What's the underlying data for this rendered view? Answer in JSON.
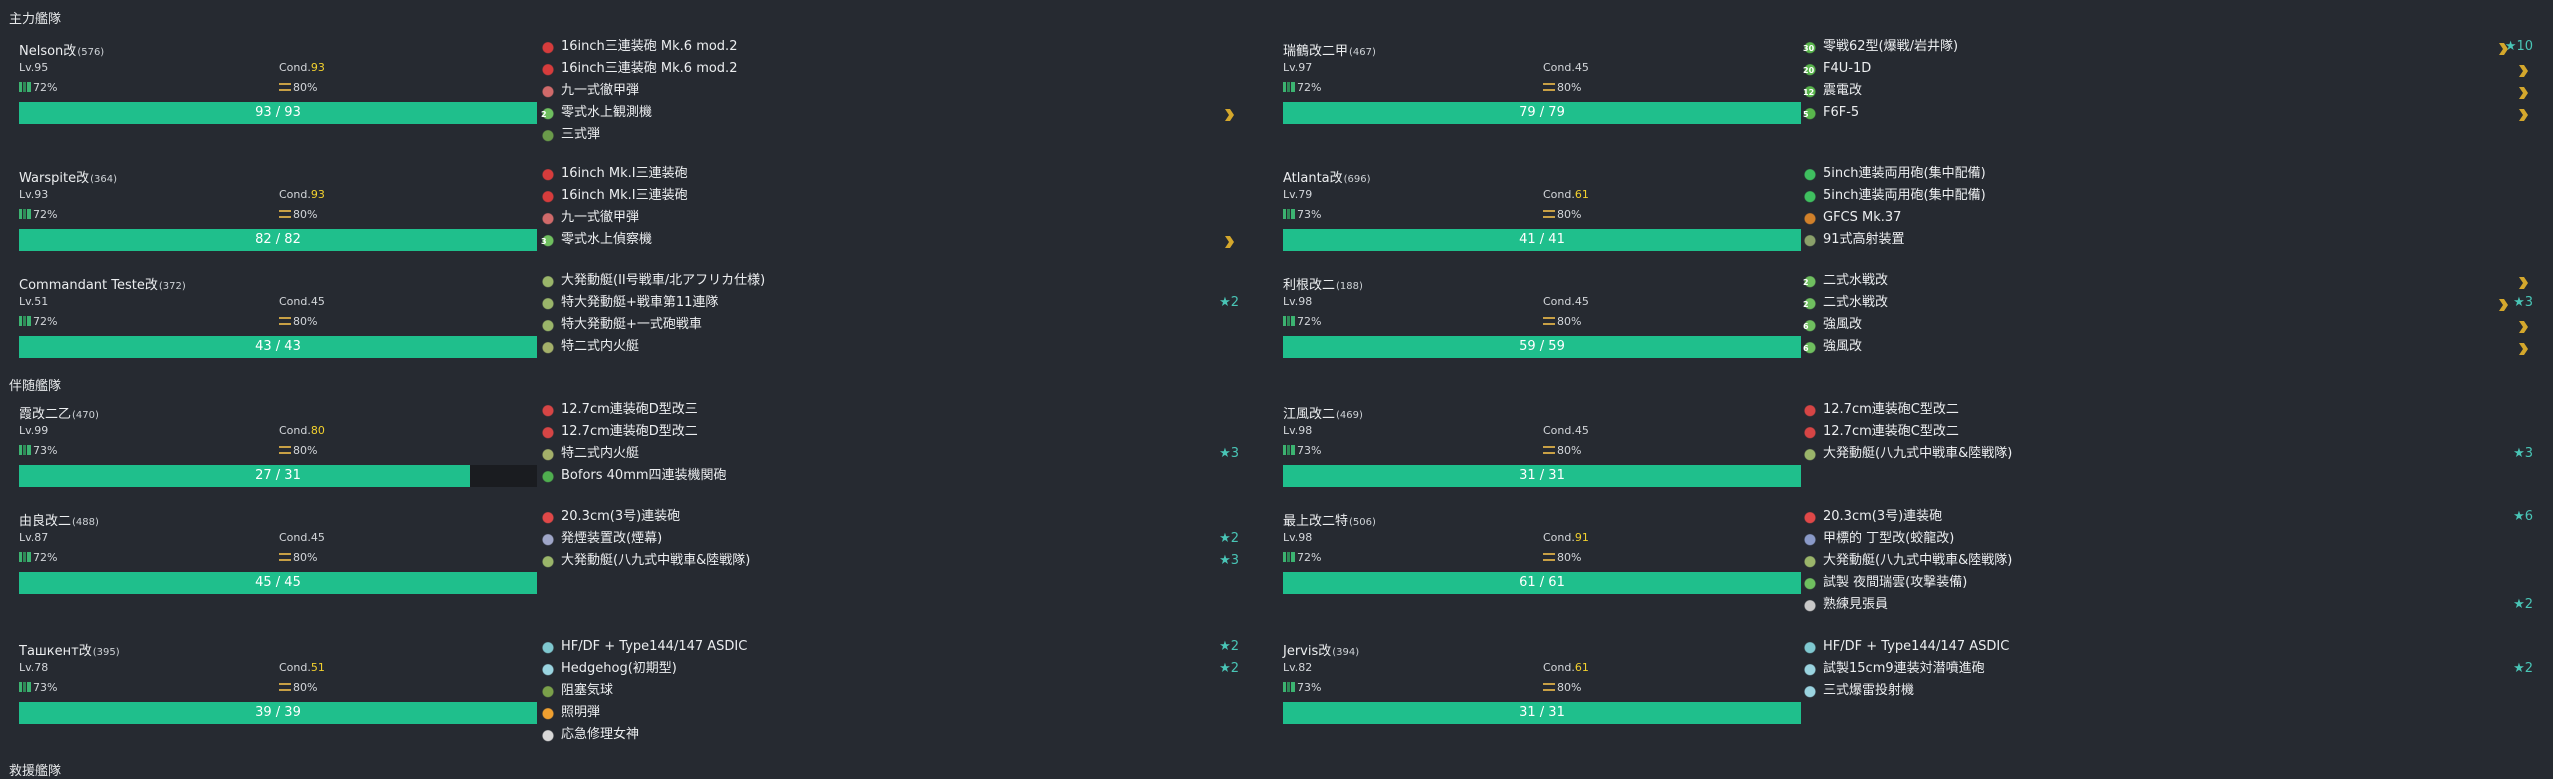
{
  "sections": {
    "main_fleet": "主力艦隊",
    "escort_fleet": "伴随艦隊",
    "third_fleet": "救援艦隊"
  },
  "colors": {
    "background": "#262a31",
    "hp_bar": "#1fbf8c",
    "cond_high": "#f3d12e",
    "improvement": "#49c5b6",
    "proficiency": "#d4a72c"
  },
  "ships": [
    {
      "name": "Nelson改",
      "id": "(576)",
      "level": "Lv.95",
      "cond_label": "Cond.",
      "cond": "93",
      "fuel": "72%",
      "ammo": "80%",
      "hp": "93 / 93",
      "hp_ratio": 1.0,
      "equip": [
        {
          "name": "16inch三連装砲 Mk.6 mod.2",
          "icon": "large-gun-icon"
        },
        {
          "name": "16inch三連装砲 Mk.6 mod.2",
          "icon": "large-gun-icon"
        },
        {
          "name": "九一式徹甲弾",
          "icon": "ap-shell-icon"
        },
        {
          "name": "零式水上観測機",
          "icon": "seaplane-icon",
          "slot": "2",
          "proficiency": true
        },
        {
          "name": "三式弾",
          "icon": "type3-shell-icon"
        }
      ]
    },
    {
      "name": "Warspite改",
      "id": "(364)",
      "level": "Lv.93",
      "cond_label": "Cond.",
      "cond": "93",
      "fuel": "72%",
      "ammo": "80%",
      "hp": "82 / 82",
      "hp_ratio": 1.0,
      "equip": [
        {
          "name": "16inch Mk.I三連装砲",
          "icon": "large-gun-icon"
        },
        {
          "name": "16inch Mk.I三連装砲",
          "icon": "large-gun-icon"
        },
        {
          "name": "九一式徹甲弾",
          "icon": "ap-shell-icon"
        },
        {
          "name": "零式水上偵察機",
          "icon": "seaplane-icon",
          "slot": "3",
          "proficiency": true
        }
      ]
    },
    {
      "name": "Commandant Teste改",
      "id": "(372)",
      "level": "Lv.51",
      "cond_label": "Cond.",
      "cond": "45",
      "fuel": "72%",
      "ammo": "80%",
      "hp": "43 / 43",
      "hp_ratio": 1.0,
      "equip": [
        {
          "name": "大発動艇(II号戦車/北アフリカ仕様)",
          "icon": "landing-craft-icon"
        },
        {
          "name": "特大発動艇+戦車第11連隊",
          "icon": "landing-craft-icon",
          "star": "★2"
        },
        {
          "name": "特大発動艇+一式砲戦車",
          "icon": "landing-craft-icon"
        },
        {
          "name": "特二式内火艇",
          "icon": "amphibious-tank-icon"
        }
      ]
    },
    {
      "name": "瑞鶴改二甲",
      "id": "(467)",
      "level": "Lv.97",
      "cond_label": "Cond.",
      "cond": "45",
      "fuel": "72%",
      "ammo": "80%",
      "hp": "79 / 79",
      "hp_ratio": 1.0,
      "equip": [
        {
          "name": "零戦62型(爆戦/岩井隊)",
          "icon": "fighter-bomber-icon",
          "slot": "30",
          "proficiency": true,
          "star": "★10"
        },
        {
          "name": "F4U-1D",
          "icon": "fighter-bomber-icon",
          "slot": "20",
          "proficiency": true
        },
        {
          "name": "震電改",
          "icon": "fighter-icon",
          "slot": "12",
          "proficiency": true
        },
        {
          "name": "F6F-5",
          "icon": "fighter-icon",
          "slot": "5",
          "proficiency": true
        }
      ]
    },
    {
      "name": "Atlanta改",
      "id": "(696)",
      "level": "Lv.79",
      "cond_label": "Cond.",
      "cond": "61",
      "fuel": "73%",
      "ammo": "80%",
      "hp": "41 / 41",
      "hp_ratio": 1.0,
      "equip": [
        {
          "name": "5inch連装両用砲(集中配備)",
          "icon": "secondary-gun-icon"
        },
        {
          "name": "5inch連装両用砲(集中配備)",
          "icon": "secondary-gun-icon"
        },
        {
          "name": "GFCS Mk.37",
          "icon": "fire-control-icon"
        },
        {
          "name": "91式高射装置",
          "icon": "aa-director-icon"
        }
      ]
    },
    {
      "name": "利根改二",
      "id": "(188)",
      "level": "Lv.98",
      "cond_label": "Cond.",
      "cond": "45",
      "fuel": "72%",
      "ammo": "80%",
      "hp": "59 / 59",
      "hp_ratio": 1.0,
      "equip": [
        {
          "name": "二式水戦改",
          "icon": "seaplane-fighter-icon",
          "slot": "2",
          "proficiency": true
        },
        {
          "name": "二式水戦改",
          "icon": "seaplane-fighter-icon",
          "slot": "2",
          "proficiency": true,
          "star": "★3"
        },
        {
          "name": "強風改",
          "icon": "seaplane-fighter-icon",
          "slot": "6",
          "proficiency": true
        },
        {
          "name": "強風改",
          "icon": "seaplane-fighter-icon",
          "slot": "6",
          "proficiency": true
        }
      ]
    },
    {
      "name": "霞改二乙",
      "id": "(470)",
      "level": "Lv.99",
      "cond_label": "Cond.",
      "cond": "80",
      "fuel": "73%",
      "ammo": "80%",
      "hp": "27 / 31",
      "hp_ratio": 0.871,
      "equip": [
        {
          "name": "12.7cm連装砲D型改三",
          "icon": "small-gun-icon"
        },
        {
          "name": "12.7cm連装砲D型改二",
          "icon": "small-gun-icon"
        },
        {
          "name": "特二式内火艇",
          "icon": "amphibious-tank-icon",
          "star": "★3"
        },
        {
          "name": "Bofors 40mm四連装機関砲",
          "icon": "aa-gun-icon"
        }
      ]
    },
    {
      "name": "由良改二",
      "id": "(488)",
      "level": "Lv.87",
      "cond_label": "Cond.",
      "cond": "45",
      "fuel": "72%",
      "ammo": "80%",
      "hp": "45 / 45",
      "hp_ratio": 1.0,
      "equip": [
        {
          "name": "20.3cm(3号)連装砲",
          "icon": "medium-gun-icon"
        },
        {
          "name": "発煙装置改(煙幕)",
          "icon": "smoke-icon",
          "star": "★2"
        },
        {
          "name": "大発動艇(八九式中戦車&陸戦隊)",
          "icon": "landing-craft-icon",
          "star": "★3"
        }
      ]
    },
    {
      "name": "Ташкент改",
      "id": "(395)",
      "level": "Lv.78",
      "cond_label": "Cond.",
      "cond": "51",
      "fuel": "73%",
      "ammo": "80%",
      "hp": "39 / 39",
      "hp_ratio": 1.0,
      "equip": [
        {
          "name": "HF/DF + Type144/147 ASDIC",
          "icon": "sonar-icon",
          "star": "★2"
        },
        {
          "name": "Hedgehog(初期型)",
          "icon": "depth-charge-icon",
          "star": "★2"
        },
        {
          "name": "阻塞気球",
          "icon": "balloon-icon"
        },
        {
          "name": "照明弾",
          "icon": "star-shell-icon"
        },
        {
          "name": "応急修理女神",
          "icon": "repair-goddess-icon"
        }
      ]
    },
    {
      "name": "江風改二",
      "id": "(469)",
      "level": "Lv.98",
      "cond_label": "Cond.",
      "cond": "45",
      "fuel": "73%",
      "ammo": "80%",
      "hp": "31 / 31",
      "hp_ratio": 1.0,
      "equip": [
        {
          "name": "12.7cm連装砲C型改二",
          "icon": "small-gun-icon"
        },
        {
          "name": "12.7cm連装砲C型改二",
          "icon": "small-gun-icon"
        },
        {
          "name": "大発動艇(八九式中戦車&陸戦隊)",
          "icon": "landing-craft-icon",
          "star": "★3"
        }
      ]
    },
    {
      "name": "最上改二特",
      "id": "(506)",
      "level": "Lv.98",
      "cond_label": "Cond.",
      "cond": "91",
      "fuel": "72%",
      "ammo": "80%",
      "hp": "61 / 61",
      "hp_ratio": 1.0,
      "equip": [
        {
          "name": "20.3cm(3号)連装砲",
          "icon": "medium-gun-icon",
          "star": "★6"
        },
        {
          "name": "甲標的 丁型改(蛟龍改)",
          "icon": "midget-sub-icon"
        },
        {
          "name": "大発動艇(八九式中戦車&陸戦隊)",
          "icon": "landing-craft-icon"
        },
        {
          "name": "試製 夜間瑞雲(攻撃装備)",
          "icon": "seaplane-bomber-icon"
        },
        {
          "name": "熟練見張員",
          "icon": "lookout-icon",
          "star": "★2"
        }
      ]
    },
    {
      "name": "Jervis改",
      "id": "(394)",
      "level": "Lv.82",
      "cond_label": "Cond.",
      "cond": "61",
      "fuel": "73%",
      "ammo": "80%",
      "hp": "31 / 31",
      "hp_ratio": 1.0,
      "equip": [
        {
          "name": "HF/DF + Type144/147 ASDIC",
          "icon": "sonar-icon"
        },
        {
          "name": "試製15cm9連装対潜噴進砲",
          "icon": "depth-charge-icon",
          "star": "★2"
        },
        {
          "name": "三式爆雷投射機",
          "icon": "depth-charge-icon"
        }
      ]
    }
  ]
}
